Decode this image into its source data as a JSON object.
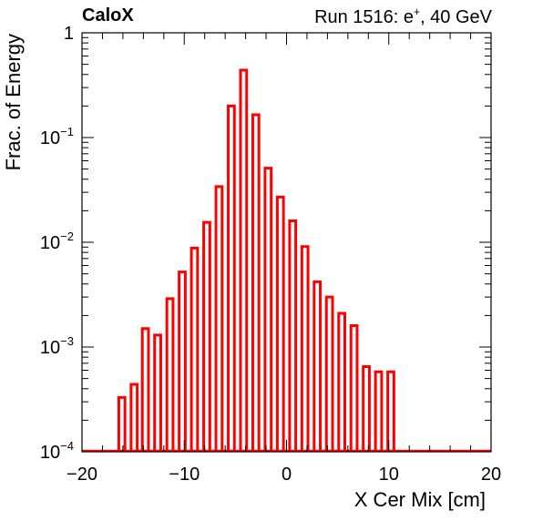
{
  "header": {
    "experiment": "CaloX",
    "run_prefix": "Run 1516: e",
    "run_superscript": "+",
    "run_suffix": ", 40 GeV"
  },
  "chart_data": {
    "type": "bar",
    "xlabel": "X Cer Mix [cm]",
    "ylabel": "Frac. of Energy",
    "xlim": [
      -20,
      20
    ],
    "ylim": [
      0.0001,
      1
    ],
    "y_scale": "log",
    "grid": false,
    "color": "#ff0000",
    "bar_width": 0.6,
    "x_ticks": [
      "−20",
      "−10",
      "0",
      "10",
      "20"
    ],
    "y_ticks": [
      {
        "base": "1",
        "exp": ""
      },
      {
        "base": "10",
        "exp": "−1"
      },
      {
        "base": "10",
        "exp": "−2"
      },
      {
        "base": "10",
        "exp": "−3"
      },
      {
        "base": "10",
        "exp": "−4"
      }
    ],
    "points": [
      {
        "x": -16.1,
        "y": 0.00033
      },
      {
        "x": -14.9,
        "y": 0.00044
      },
      {
        "x": -13.8,
        "y": 0.0015
      },
      {
        "x": -12.6,
        "y": 0.0013
      },
      {
        "x": -11.4,
        "y": 0.0029
      },
      {
        "x": -10.2,
        "y": 0.0052
      },
      {
        "x": -9.0,
        "y": 0.0088
      },
      {
        "x": -7.8,
        "y": 0.0155
      },
      {
        "x": -6.6,
        "y": 0.034
      },
      {
        "x": -5.4,
        "y": 0.2
      },
      {
        "x": -4.2,
        "y": 0.44
      },
      {
        "x": -3.0,
        "y": 0.165
      },
      {
        "x": -1.8,
        "y": 0.051
      },
      {
        "x": -0.6,
        "y": 0.027
      },
      {
        "x": 0.6,
        "y": 0.016
      },
      {
        "x": 1.8,
        "y": 0.0091
      },
      {
        "x": 3.0,
        "y": 0.0042
      },
      {
        "x": 4.2,
        "y": 0.003
      },
      {
        "x": 5.4,
        "y": 0.0021
      },
      {
        "x": 6.6,
        "y": 0.0016
      },
      {
        "x": 7.8,
        "y": 0.00065
      },
      {
        "x": 9.0,
        "y": 0.00058
      },
      {
        "x": 10.2,
        "y": 0.00058
      }
    ]
  }
}
